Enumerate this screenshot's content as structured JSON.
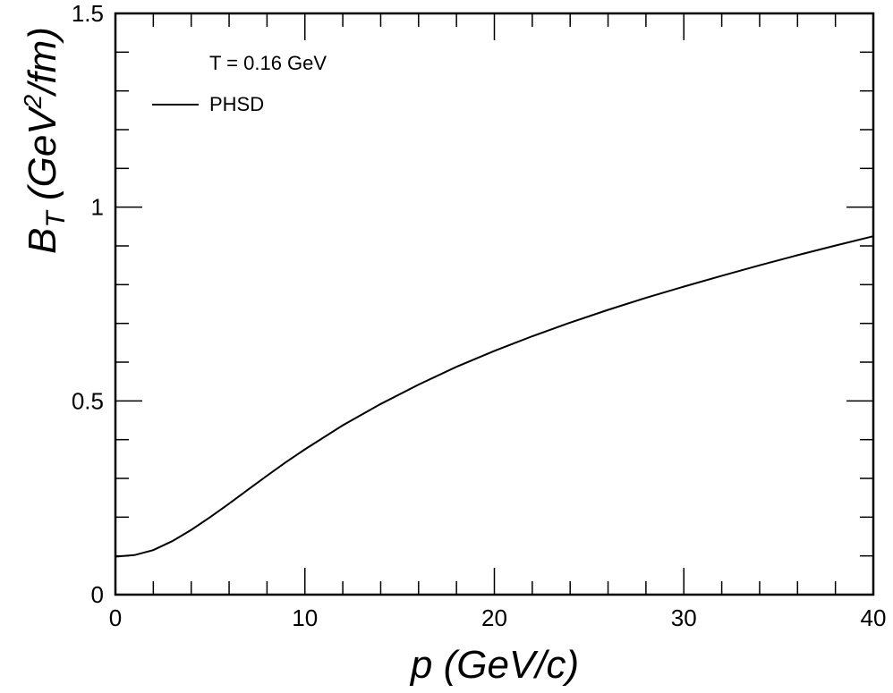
{
  "chart_data": {
    "type": "line",
    "x_label_var": "p",
    "x_label_rest": " (GeV/c)",
    "y_label_var": "B",
    "y_label_sub": "T",
    "y_label_mid": " (GeV",
    "y_label_sup": "2",
    "y_label_end": "/fm)",
    "xlim": [
      0,
      40
    ],
    "ylim": [
      0,
      1.5
    ],
    "x_ticks": [
      0,
      10,
      20,
      30,
      40
    ],
    "x_tick_labels": [
      "0",
      "10",
      "20",
      "30",
      "40"
    ],
    "y_ticks": [
      0,
      0.5,
      1,
      1.5
    ],
    "y_tick_labels": [
      "0",
      "0.5",
      "1",
      "1.5"
    ],
    "x_minor_step": 2,
    "y_minor_step": 0.1,
    "grid": false,
    "annotation": "T = 0.16 GeV",
    "legend_position": "top-left",
    "series": [
      {
        "name": "PHSD",
        "color": "#000000",
        "x": [
          0,
          1,
          2,
          3,
          4,
          5,
          6,
          7,
          8,
          9,
          10,
          12,
          14,
          16,
          18,
          20,
          22,
          24,
          26,
          28,
          30,
          32,
          34,
          36,
          38,
          40
        ],
        "y": [
          0.098,
          0.102,
          0.115,
          0.138,
          0.167,
          0.2,
          0.235,
          0.271,
          0.307,
          0.342,
          0.375,
          0.437,
          0.492,
          0.542,
          0.588,
          0.629,
          0.667,
          0.702,
          0.735,
          0.766,
          0.795,
          0.823,
          0.85,
          0.876,
          0.901,
          0.925
        ]
      }
    ]
  }
}
